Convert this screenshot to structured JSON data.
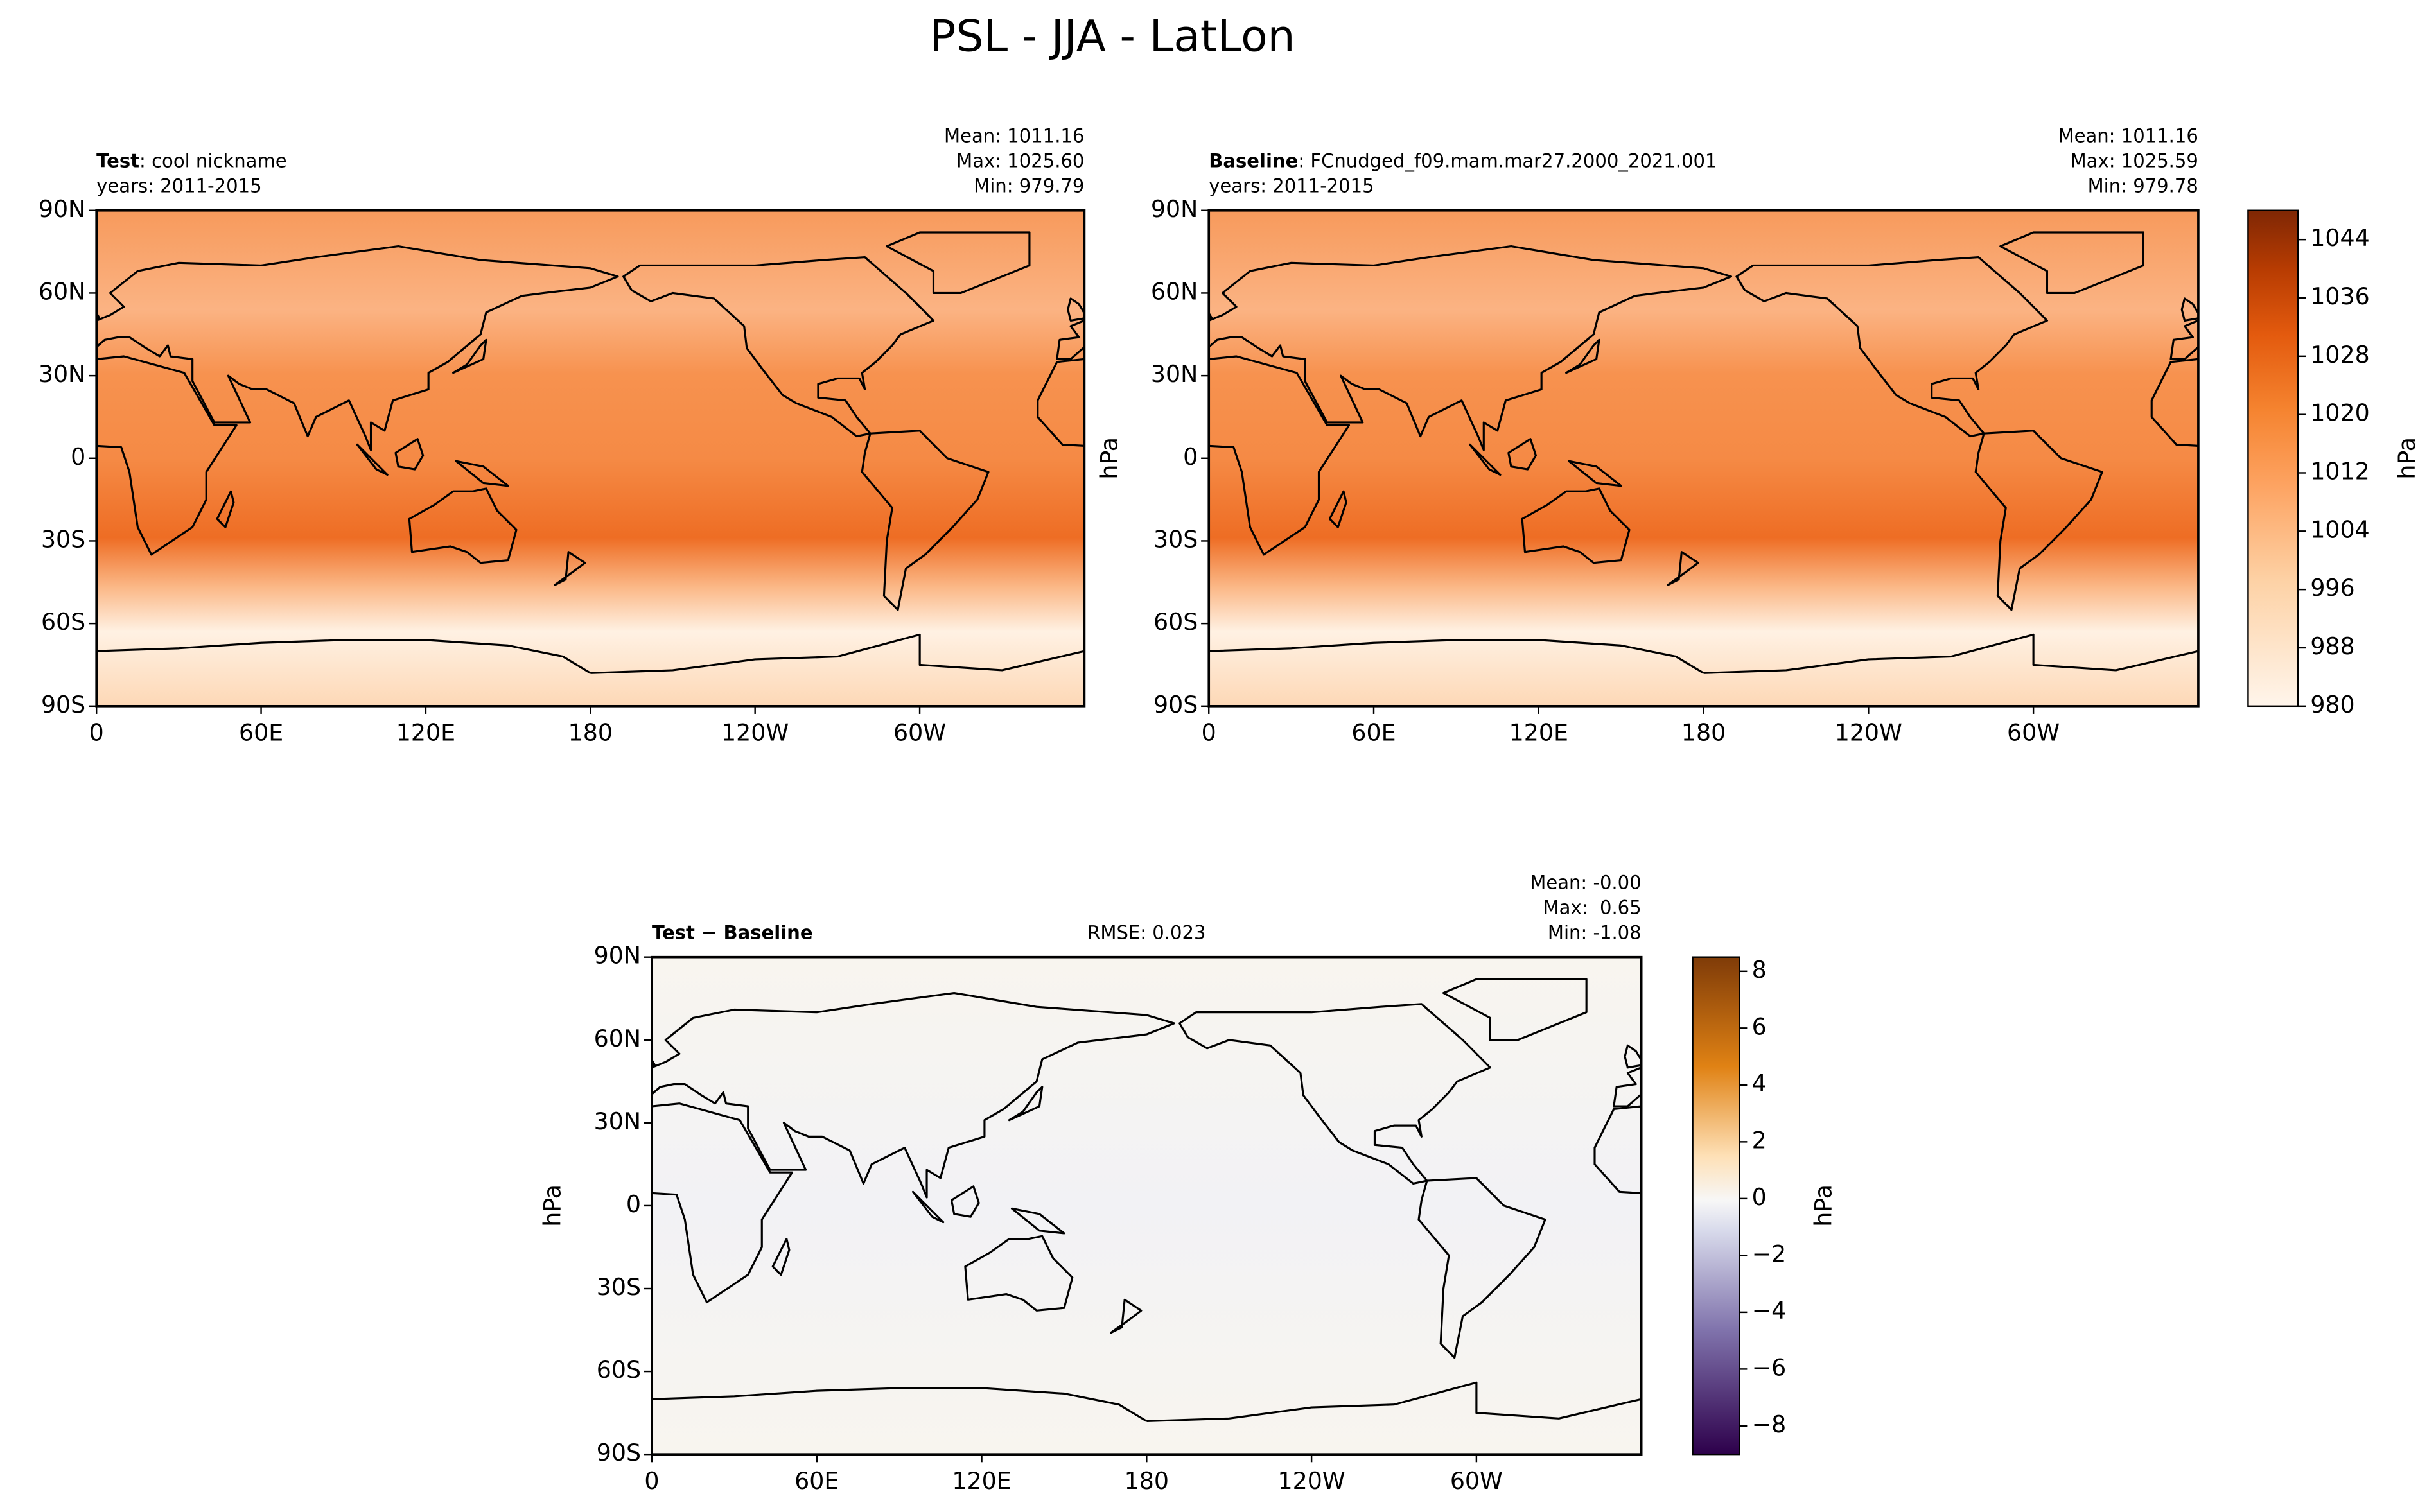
{
  "title": "PSL - JJA - LatLon",
  "lat_ticks": [
    "90N",
    "60N",
    "30N",
    "0",
    "30S",
    "60S",
    "90S"
  ],
  "lon_ticks": [
    "0",
    "60E",
    "120E",
    "180",
    "120W",
    "60W"
  ],
  "panels": [
    {
      "label": "Test",
      "name": ": cool nickname",
      "years": "years: 2011-2015",
      "stats": [
        "Mean: 1011.16",
        "Max: 1025.60",
        "Min: 979.79"
      ]
    },
    {
      "label": "Baseline",
      "name": ": FCnudged_f09.mam.mar27.2000_2021.001",
      "years": "years: 2011-2015",
      "stats": [
        "Mean: 1011.16",
        "Max: 1025.59",
        "Min: 979.78"
      ],
      "ylabel": "hPa"
    },
    {
      "label": "Test − Baseline",
      "rmse": "RMSE: 0.023",
      "stats": [
        "Mean: -0.00",
        "Max:  0.65",
        "Min: -1.08"
      ],
      "ylabel": "hPa"
    }
  ],
  "colorbars": [
    {
      "label": "hPa",
      "lim": [
        980,
        1048
      ],
      "ticks": [
        980,
        988,
        996,
        1004,
        1012,
        1020,
        1028,
        1036,
        1044
      ]
    },
    {
      "label": "hPa",
      "lim": [
        -9,
        8.5
      ],
      "ticks": [
        {
          "value": -8,
          "label": "−8"
        },
        {
          "value": -6,
          "label": "−6"
        },
        {
          "value": -4,
          "label": "−4"
        },
        {
          "value": -2,
          "label": "−2"
        },
        0,
        2,
        4,
        6,
        8
      ]
    }
  ]
}
